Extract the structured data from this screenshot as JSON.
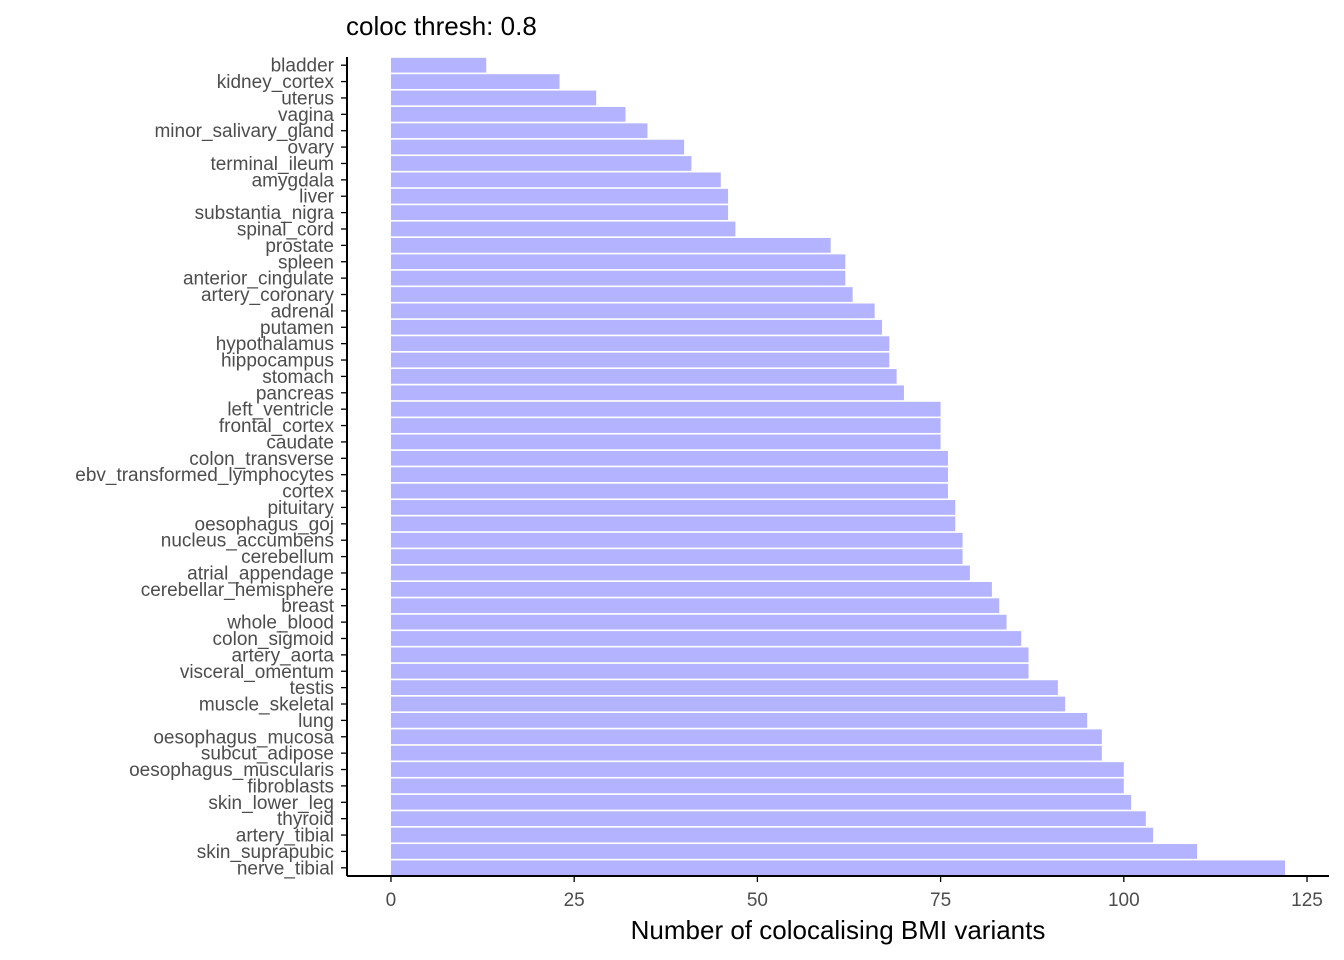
{
  "chart_data": {
    "type": "bar",
    "orientation": "horizontal",
    "title": "coloc thresh: 0.8",
    "xlabel": "Number of colocalising BMI variants",
    "ylabel": "",
    "xlim": [
      -6,
      128
    ],
    "xticks": [
      0,
      25,
      50,
      75,
      100,
      125
    ],
    "grid": false,
    "legend": "none",
    "bar_color": "#b3b3ff",
    "categories": [
      "bladder",
      "kidney_cortex",
      "uterus",
      "vagina",
      "minor_salivary_gland",
      "ovary",
      "terminal_ileum",
      "amygdala",
      "liver",
      "substantia_nigra",
      "spinal_cord",
      "prostate",
      "spleen",
      "anterior_cingulate",
      "artery_coronary",
      "adrenal",
      "putamen",
      "hypothalamus",
      "hippocampus",
      "stomach",
      "pancreas",
      "left_ventricle",
      "frontal_cortex",
      "caudate",
      "colon_transverse",
      "ebv_transformed_lymphocytes",
      "cortex",
      "pituitary",
      "oesophagus_goj",
      "nucleus_accumbens",
      "cerebellum",
      "atrial_appendage",
      "cerebellar_hemisphere",
      "breast",
      "whole_blood",
      "colon_sigmoid",
      "artery_aorta",
      "visceral_omentum",
      "testis",
      "muscle_skeletal",
      "lung",
      "oesophagus_mucosa",
      "subcut_adipose",
      "oesophagus_muscularis",
      "fibroblasts",
      "skin_lower_leg",
      "thyroid",
      "artery_tibial",
      "skin_suprapubic",
      "nerve_tibial"
    ],
    "values": [
      13,
      23,
      28,
      32,
      35,
      40,
      41,
      45,
      46,
      46,
      47,
      60,
      62,
      62,
      63,
      66,
      67,
      68,
      68,
      69,
      70,
      75,
      75,
      75,
      76,
      76,
      76,
      77,
      77,
      78,
      78,
      79,
      82,
      83,
      84,
      86,
      87,
      87,
      91,
      92,
      95,
      97,
      97,
      100,
      100,
      101,
      103,
      104,
      110,
      122
    ]
  }
}
